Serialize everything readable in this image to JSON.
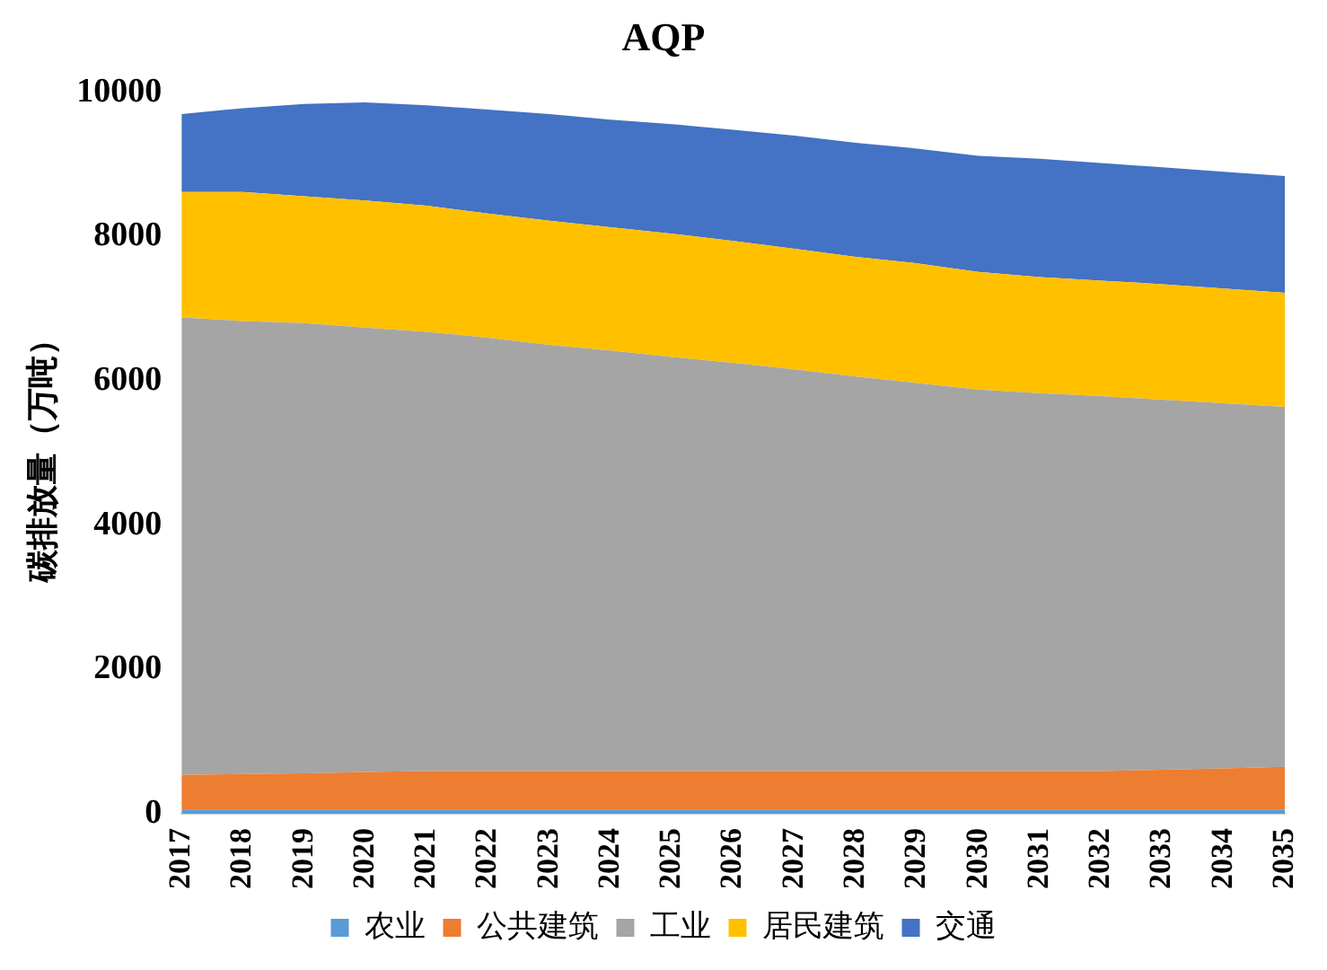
{
  "chart_data": {
    "type": "area",
    "title": "AQP",
    "ylabel": "碳排放量（万吨）",
    "stacked": true,
    "categories": [
      "2017",
      "2018",
      "2019",
      "2020",
      "2021",
      "2022",
      "2023",
      "2024",
      "2025",
      "2026",
      "2027",
      "2028",
      "2029",
      "2030",
      "2031",
      "2032",
      "2033",
      "2034",
      "2035"
    ],
    "series": [
      {
        "name": "农业",
        "color": "#5b9bd5",
        "values": [
          60,
          60,
          60,
          60,
          60,
          60,
          60,
          60,
          60,
          60,
          60,
          60,
          60,
          60,
          60,
          60,
          60,
          60,
          60
        ]
      },
      {
        "name": "公共建筑",
        "color": "#ed7d31",
        "values": [
          480,
          490,
          500,
          520,
          530,
          530,
          530,
          530,
          530,
          530,
          530,
          530,
          530,
          530,
          530,
          530,
          550,
          570,
          590
        ]
      },
      {
        "name": "工业",
        "color": "#a5a5a5",
        "values": [
          6340,
          6280,
          6240,
          6160,
          6090,
          6010,
          5910,
          5830,
          5740,
          5660,
          5570,
          5470,
          5380,
          5290,
          5240,
          5200,
          5130,
          5060,
          4990
        ]
      },
      {
        "name": "居民建筑",
        "color": "#ffc000",
        "values": [
          1740,
          1790,
          1760,
          1760,
          1750,
          1720,
          1720,
          1710,
          1710,
          1690,
          1670,
          1660,
          1660,
          1630,
          1610,
          1600,
          1600,
          1590,
          1580
        ]
      },
      {
        "name": "交通",
        "color": "#4472c4",
        "values": [
          1080,
          1160,
          1280,
          1360,
          1390,
          1440,
          1480,
          1490,
          1520,
          1540,
          1570,
          1580,
          1590,
          1610,
          1640,
          1630,
          1620,
          1620,
          1620
        ]
      }
    ],
    "ylim": [
      0,
      10000
    ],
    "yticks": [
      0,
      2000,
      4000,
      6000,
      8000,
      10000
    ],
    "grid": false,
    "legend": "bottom"
  }
}
